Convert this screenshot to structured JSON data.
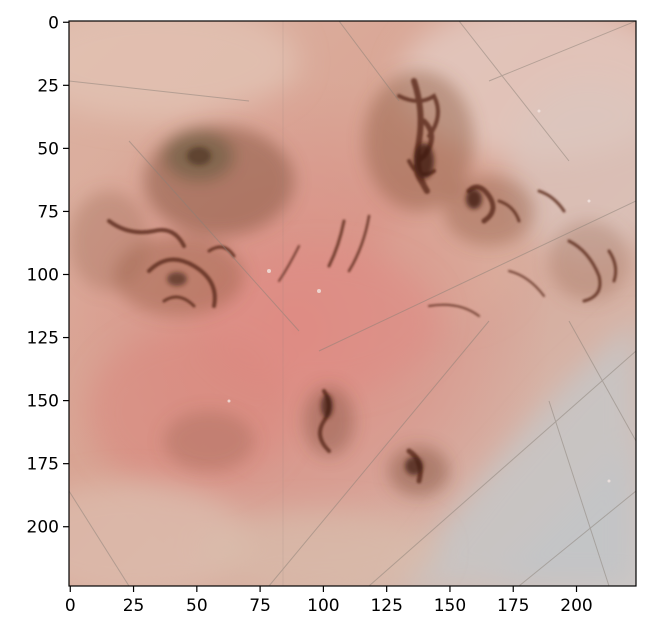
{
  "image": {
    "subject": "dermoscopy-skin-lesion",
    "colors": {
      "skin_base": "#d9a896",
      "skin_light": "#e6c6b8",
      "pink_center": "#d98a82",
      "pale_blue_gray": "#c9c5c2",
      "pigment_dark": "#5a2e1c",
      "pigment_mid": "#8a4f36",
      "green_tint": "#6e6a4e"
    }
  },
  "axes": {
    "x_range": [
      0,
      224
    ],
    "y_range": [
      0,
      224
    ],
    "x_ticks": [
      {
        "value": 0,
        "label": "0"
      },
      {
        "value": 25,
        "label": "25"
      },
      {
        "value": 50,
        "label": "50"
      },
      {
        "value": 75,
        "label": "75"
      },
      {
        "value": 100,
        "label": "100"
      },
      {
        "value": 125,
        "label": "125"
      },
      {
        "value": 150,
        "label": "150"
      },
      {
        "value": 175,
        "label": "175"
      },
      {
        "value": 200,
        "label": "200"
      }
    ],
    "y_ticks": [
      {
        "value": 0,
        "label": "0"
      },
      {
        "value": 25,
        "label": "25"
      },
      {
        "value": 50,
        "label": "50"
      },
      {
        "value": 75,
        "label": "75"
      },
      {
        "value": 100,
        "label": "100"
      },
      {
        "value": 125,
        "label": "125"
      },
      {
        "value": 150,
        "label": "150"
      },
      {
        "value": 175,
        "label": "175"
      },
      {
        "value": 200,
        "label": "200"
      }
    ]
  }
}
